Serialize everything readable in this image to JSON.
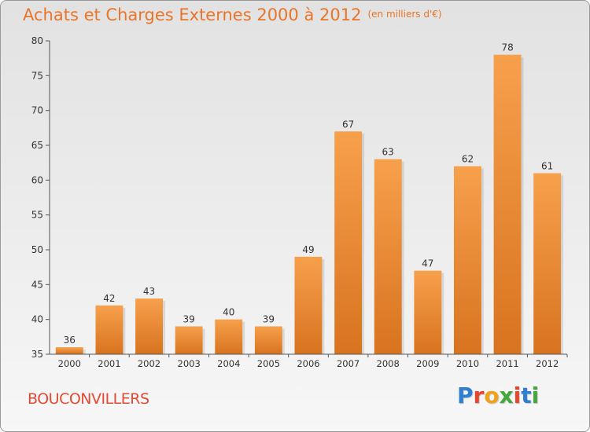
{
  "header": {
    "title": "Achats et Charges Externes 2000 à 2012",
    "unit": "(en milliers d'€)"
  },
  "footer": {
    "commune": "BOUCONVILLERS",
    "logo_text": "Proxiti",
    "logo_colors": [
      "#2e7fd1",
      "#e5462e",
      "#f0a11c",
      "#43a83c",
      "#e5462e",
      "#2e7fd1",
      "#43a83c"
    ]
  },
  "colors": {
    "bar_light": "#f7a04c",
    "bar_dark": "#d8731f",
    "axis": "#555555",
    "text": "#333333"
  },
  "chart_data": {
    "type": "bar",
    "title": "Achats et Charges Externes 2000 à 2012",
    "categories": [
      "2000",
      "2001",
      "2002",
      "2003",
      "2004",
      "2005",
      "2006",
      "2007",
      "2008",
      "2009",
      "2010",
      "2011",
      "2012"
    ],
    "values": [
      36,
      42,
      43,
      39,
      40,
      39,
      49,
      67,
      63,
      47,
      62,
      78,
      61
    ],
    "xlabel": "",
    "ylabel": "",
    "ylim": [
      35,
      80
    ],
    "yticks": [
      35,
      40,
      45,
      50,
      55,
      60,
      65,
      70,
      75,
      80
    ],
    "grid": false,
    "legend": "none"
  }
}
